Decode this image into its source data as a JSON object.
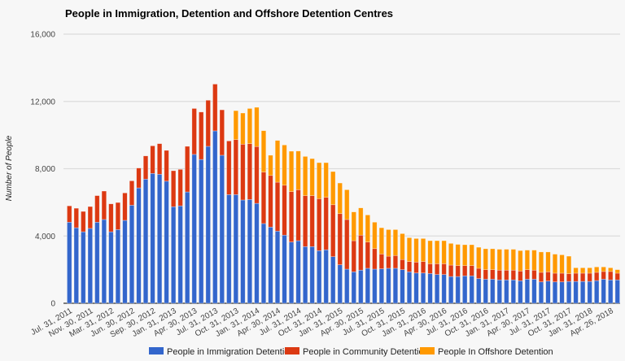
{
  "chart_data": {
    "type": "bar",
    "stacked": true,
    "title": "People in Immigration, Detention and Offshore Detention Centres",
    "xlabel": "",
    "ylabel": "Number of People",
    "ylim": [
      0,
      16000
    ],
    "yticks": [
      0,
      4000,
      8000,
      12000,
      16000
    ],
    "ytick_labels": [
      "0",
      "4,000",
      "8,000",
      "12,000",
      "16,000"
    ],
    "grid": true,
    "legend_position": "bottom",
    "xtick_labels": [
      "Jul. 31, 2011",
      "Nov. 30, 2011",
      "Mar. 31, 2012",
      "Jun. 30, 2012",
      "Sep. 30, 2012",
      "Jan. 31, 2013",
      "Apr. 30, 2013",
      "Jul. 31, 2013",
      "Oct. 31, 2013",
      "Jan. 31, 2014",
      "Apr. 30, 2014",
      "Jul. 31, 2014",
      "Oct. 31, 2014",
      "Jan. 31, 2015",
      "Apr. 30, 2015",
      "Jul. 31, 2015",
      "Oct. 31, 2015",
      "Jan. 31, 2016",
      "Apr. 30, 2016",
      "Jul. 31, 2016",
      "Oct. 31, 2016",
      "Jan. 31, 2017",
      "Apr. 30, 2017",
      "Jul. 31, 2017",
      "Oct. 31, 2017",
      "Jan. 31, 2018",
      "Apr. 26, 2018"
    ],
    "xtick_every": 3,
    "series": [
      {
        "name": "People in Immigration Detention",
        "color": "#3366cc",
        "values": [
          4820,
          4490,
          4250,
          4450,
          4820,
          4980,
          4250,
          4380,
          4930,
          5830,
          6860,
          7380,
          7720,
          7670,
          7260,
          5740,
          5790,
          6620,
          8850,
          8550,
          9330,
          10250,
          8800,
          6460,
          6460,
          6140,
          6170,
          5940,
          4740,
          4530,
          4290,
          4050,
          3640,
          3720,
          3370,
          3370,
          3130,
          3180,
          2770,
          2290,
          2030,
          1870,
          1970,
          2080,
          2030,
          2050,
          2080,
          2080,
          2000,
          1870,
          1800,
          1800,
          1770,
          1710,
          1710,
          1590,
          1590,
          1630,
          1630,
          1470,
          1430,
          1430,
          1390,
          1390,
          1390,
          1340,
          1430,
          1430,
          1270,
          1320,
          1270,
          1270,
          1300,
          1300,
          1300,
          1300,
          1350,
          1430,
          1390,
          1390
        ]
      },
      {
        "name": "People in Community Detention",
        "color": "#dc3912",
        "values": [
          970,
          1160,
          1210,
          1300,
          1580,
          1690,
          1660,
          1610,
          1630,
          1450,
          1180,
          1380,
          1640,
          1820,
          1830,
          2140,
          2170,
          2710,
          2730,
          2820,
          2740,
          2780,
          2700,
          3190,
          3270,
          3320,
          3320,
          3380,
          3060,
          3070,
          2910,
          2970,
          3000,
          3030,
          3030,
          3030,
          3090,
          3120,
          3090,
          3040,
          2950,
          1850,
          2080,
          1560,
          1220,
          880,
          720,
          760,
          600,
          610,
          650,
          680,
          580,
          640,
          640,
          680,
          650,
          610,
          610,
          610,
          570,
          570,
          580,
          580,
          580,
          580,
          570,
          540,
          570,
          550,
          520,
          520,
          460,
          490,
          490,
          490,
          490,
          460,
          500,
          400
        ]
      },
      {
        "name": "People In Offshore Detention",
        "color": "#ff9900",
        "values": [
          0,
          0,
          0,
          0,
          0,
          0,
          0,
          0,
          0,
          0,
          0,
          0,
          0,
          0,
          0,
          0,
          0,
          0,
          0,
          0,
          0,
          0,
          0,
          0,
          1720,
          1850,
          2090,
          2330,
          2460,
          1200,
          2480,
          2390,
          2400,
          2300,
          2330,
          2200,
          2140,
          2060,
          1970,
          1820,
          1770,
          1710,
          1620,
          1610,
          1570,
          1560,
          1580,
          1540,
          1540,
          1420,
          1400,
          1370,
          1370,
          1370,
          1370,
          1290,
          1260,
          1240,
          1240,
          1250,
          1240,
          1240,
          1240,
          1240,
          1240,
          1210,
          1160,
          1190,
          1210,
          1180,
          1130,
          1090,
          1040,
          320,
          320,
          320,
          320,
          270,
          220,
          210
        ]
      }
    ]
  }
}
